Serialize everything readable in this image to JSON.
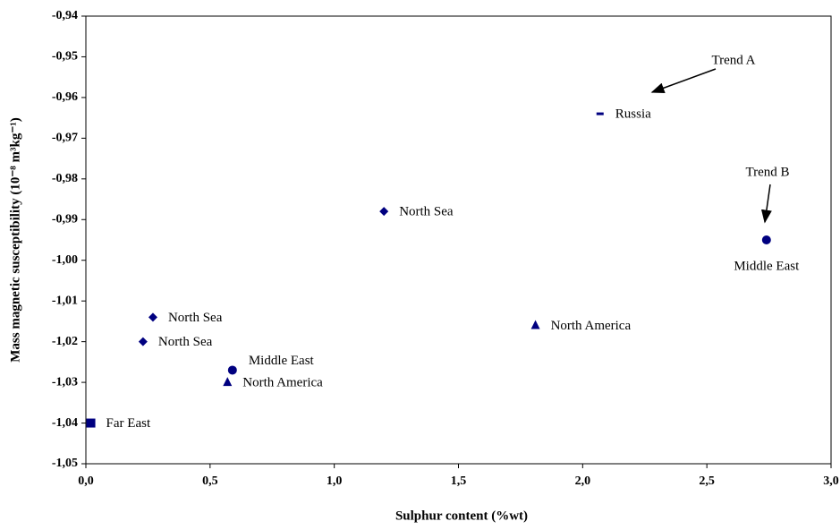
{
  "chart_data": {
    "type": "scatter",
    "x_label": "Sulphur content (%wt)",
    "y_label": "Mass magnetic susceptibility (10⁻⁸ m³kg⁻¹)",
    "xlim": [
      0,
      3
    ],
    "ylim": [
      -1.05,
      -0.94
    ],
    "xticks": [
      {
        "value": 0,
        "label": "0,0"
      },
      {
        "value": 0.5,
        "label": "0,5"
      },
      {
        "value": 1,
        "label": "1,0"
      },
      {
        "value": 1.5,
        "label": "1,5"
      },
      {
        "value": 2,
        "label": "2,0"
      },
      {
        "value": 2.5,
        "label": "2,5"
      },
      {
        "value": 3,
        "label": "3,0"
      }
    ],
    "yticks": [
      {
        "value": -1.05,
        "label": "-1,05"
      },
      {
        "value": -1.04,
        "label": "-1,04"
      },
      {
        "value": -1.03,
        "label": "-1,03"
      },
      {
        "value": -1.02,
        "label": "-1,02"
      },
      {
        "value": -1.01,
        "label": "-1,01"
      },
      {
        "value": -1.0,
        "label": "-1,00"
      },
      {
        "value": -0.99,
        "label": "-0,99"
      },
      {
        "value": -0.98,
        "label": "-0,98"
      },
      {
        "value": -0.97,
        "label": "-0,97"
      },
      {
        "value": -0.96,
        "label": "-0,96"
      },
      {
        "value": -0.95,
        "label": "-0,95"
      },
      {
        "value": -0.94,
        "label": "-0,94"
      }
    ],
    "grid": false,
    "series": [
      {
        "name": "North Sea",
        "marker": "diamond",
        "color": "#000080",
        "x": [
          0.23,
          0.27,
          1.2
        ],
        "values": [
          -1.02,
          -1.014,
          -0.988
        ]
      },
      {
        "name": "Middle East",
        "marker": "circle",
        "color": "#000080",
        "x": [
          0.59,
          2.74
        ],
        "values": [
          -1.027,
          -0.995
        ]
      },
      {
        "name": "North America",
        "marker": "triangle",
        "color": "#000080",
        "x": [
          0.57,
          1.81
        ],
        "values": [
          -1.03,
          -1.016
        ]
      },
      {
        "name": "Far East",
        "marker": "square",
        "color": "#000080",
        "x": [
          0.02
        ],
        "values": [
          -1.04
        ]
      },
      {
        "name": "Russia",
        "marker": "dash",
        "color": "#000080",
        "x": [
          2.07
        ],
        "values": [
          -0.964
        ]
      }
    ],
    "annotations": [
      "Trend A",
      "Trend B"
    ]
  }
}
